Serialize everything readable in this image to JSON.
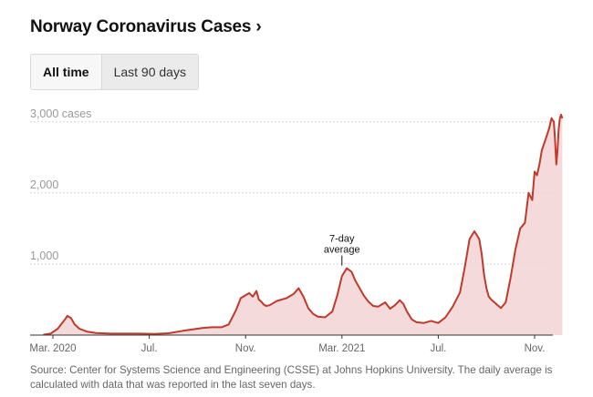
{
  "header": {
    "title": "Norway Coronavirus Cases ›"
  },
  "tabs": [
    {
      "label": "All time",
      "active": true
    },
    {
      "label": "Last 90 days",
      "active": false
    }
  ],
  "chart_data": {
    "type": "area",
    "title": "Norway Coronavirus Cases",
    "series_name": "7-day average",
    "ylim": [
      0,
      3100
    ],
    "y_ticks": [
      {
        "value": 1000,
        "label": "1,000"
      },
      {
        "value": 2000,
        "label": "2,000"
      },
      {
        "value": 3000,
        "label": "3,000 cases"
      }
    ],
    "x_ticks": [
      {
        "t": 0.0,
        "label": "Mar. 2020"
      },
      {
        "t": 4.0,
        "label": "Jul."
      },
      {
        "t": 8.0,
        "label": "Nov."
      },
      {
        "t": 12.0,
        "label": "Mar. 2021"
      },
      {
        "t": 16.0,
        "label": "Jul."
      },
      {
        "t": 20.0,
        "label": "Nov."
      }
    ],
    "t_unit": "months since 1 Mar 2020",
    "x": [
      -0.4,
      -0.1,
      0.2,
      0.5,
      0.6,
      0.75,
      0.9,
      1.1,
      1.4,
      1.8,
      2.4,
      3.0,
      3.6,
      4.2,
      4.8,
      5.4,
      5.8,
      6.2,
      6.6,
      7.0,
      7.3,
      7.6,
      7.8,
      8.0,
      8.15,
      8.3,
      8.45,
      8.55,
      8.65,
      8.75,
      8.85,
      9.0,
      9.3,
      9.7,
      10.0,
      10.2,
      10.4,
      10.6,
      10.8,
      11.0,
      11.3,
      11.6,
      11.8,
      12.0,
      12.2,
      12.4,
      12.55,
      12.7,
      12.9,
      13.1,
      13.3,
      13.5,
      13.8,
      14.0,
      14.2,
      14.4,
      14.55,
      14.7,
      14.9,
      15.1,
      15.4,
      15.7,
      16.0,
      16.3,
      16.6,
      16.9,
      17.1,
      17.3,
      17.5,
      17.7,
      17.8,
      17.9,
      18.0,
      18.1,
      18.2,
      18.4,
      18.6,
      18.8,
      19.0,
      19.2,
      19.4,
      19.6,
      19.75,
      19.9,
      20.0,
      20.1,
      20.2,
      20.3,
      20.4,
      20.5,
      20.6,
      20.7,
      20.8,
      20.85,
      20.9,
      20.95,
      21.0,
      21.05,
      21.1,
      21.15
    ],
    "values": [
      5,
      20,
      90,
      220,
      270,
      240,
      150,
      90,
      50,
      30,
      20,
      20,
      20,
      15,
      25,
      60,
      80,
      100,
      110,
      110,
      150,
      350,
      520,
      560,
      590,
      540,
      620,
      500,
      470,
      430,
      410,
      420,
      480,
      520,
      580,
      660,
      540,
      380,
      300,
      260,
      250,
      330,
      550,
      830,
      940,
      890,
      770,
      680,
      560,
      470,
      410,
      400,
      460,
      370,
      420,
      490,
      440,
      330,
      220,
      180,
      170,
      200,
      170,
      250,
      400,
      600,
      950,
      1350,
      1460,
      1350,
      1150,
      850,
      660,
      540,
      500,
      440,
      380,
      460,
      800,
      1200,
      1500,
      1580,
      2000,
      1900,
      2300,
      2250,
      2400,
      2600,
      2700,
      2800,
      2900,
      3050,
      3000,
      2750,
      2400,
      2600,
      2900,
      3050,
      3100,
      3050
    ],
    "annotation": {
      "text_line1": "7-day",
      "text_line2": "average",
      "t": 12.0,
      "value": 940
    },
    "source": "Source: Center for Systems Science and Engineering (CSSE) at Johns Hopkins University. The daily average is calculated with data that was reported in the last seven days.",
    "colors": {
      "line": "#c0392b",
      "fill": "#f2d3d3",
      "grid": "#d6d6d6",
      "axis": "#333333"
    }
  }
}
